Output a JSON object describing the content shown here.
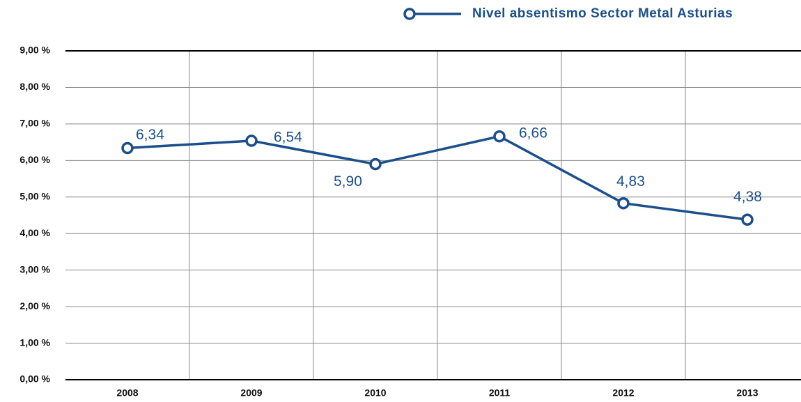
{
  "chart_data": {
    "type": "line",
    "categories": [
      "2008",
      "2009",
      "2010",
      "2011",
      "2012",
      "2013"
    ],
    "series": [
      {
        "name": "Nivel absentismo Sector Metal Asturias",
        "color": "#1b4f8c",
        "values": [
          6.34,
          6.54,
          5.9,
          6.66,
          4.83,
          4.38
        ],
        "value_labels": [
          "6,34",
          "6,54",
          "5,90",
          "6,66",
          "4,83",
          "4,38"
        ]
      }
    ],
    "ylim": [
      0,
      9
    ],
    "yticks": [
      {
        "value": 0,
        "label": "0,00 %"
      },
      {
        "value": 1,
        "label": "1,00 %"
      },
      {
        "value": 2,
        "label": "2,00 %"
      },
      {
        "value": 3,
        "label": "3,00 %"
      },
      {
        "value": 4,
        "label": "4,00 %"
      },
      {
        "value": 5,
        "label": "5,00 %"
      },
      {
        "value": 6,
        "label": "6,00 %"
      },
      {
        "value": 7,
        "label": "7,00 %"
      },
      {
        "value": 8,
        "label": "8,00 %"
      },
      {
        "value": 9,
        "label": "9,00 %"
      }
    ],
    "grid": true,
    "legend": "top-right"
  }
}
